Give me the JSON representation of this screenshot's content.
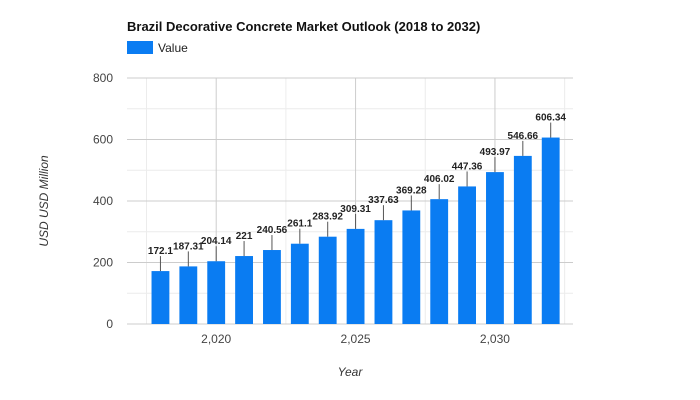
{
  "chart_data": {
    "type": "bar",
    "title": "Brazil Decorative Concrete Market Outlook (2018 to 2032)",
    "xlabel": "Year",
    "ylabel": "USD USD Million",
    "legend": {
      "position": "top-left",
      "entries": [
        "Value"
      ]
    },
    "x": [
      2018,
      2019,
      2020,
      2021,
      2022,
      2023,
      2024,
      2025,
      2026,
      2027,
      2028,
      2029,
      2030,
      2031,
      2032
    ],
    "x_ticks": [
      2020,
      2025,
      2030
    ],
    "x_tick_labels": [
      "2,020",
      "2,025",
      "2,030"
    ],
    "series": [
      {
        "name": "Value",
        "values": [
          172.1,
          187.31,
          204.14,
          221,
          240.56,
          261.1,
          283.92,
          309.31,
          337.63,
          369.28,
          406.02,
          447.36,
          493.97,
          546.66,
          606.34
        ],
        "labels": [
          "172.1",
          "187.31",
          "204.14",
          "221",
          "240.56",
          "261.1",
          "283.92",
          "309.31",
          "337.63",
          "369.28",
          "406.02",
          "447.36",
          "493.97",
          "546.66",
          "606.34"
        ]
      }
    ],
    "ylim": [
      0,
      800
    ],
    "xlim": [
      2016.8,
      2032.8
    ],
    "y_ticks": [
      0,
      200,
      400,
      600,
      800
    ],
    "y_tick_labels": [
      "0",
      "200",
      "400",
      "600",
      "800"
    ],
    "grid": true,
    "colors": {
      "bar": "#0a7cf2"
    }
  }
}
